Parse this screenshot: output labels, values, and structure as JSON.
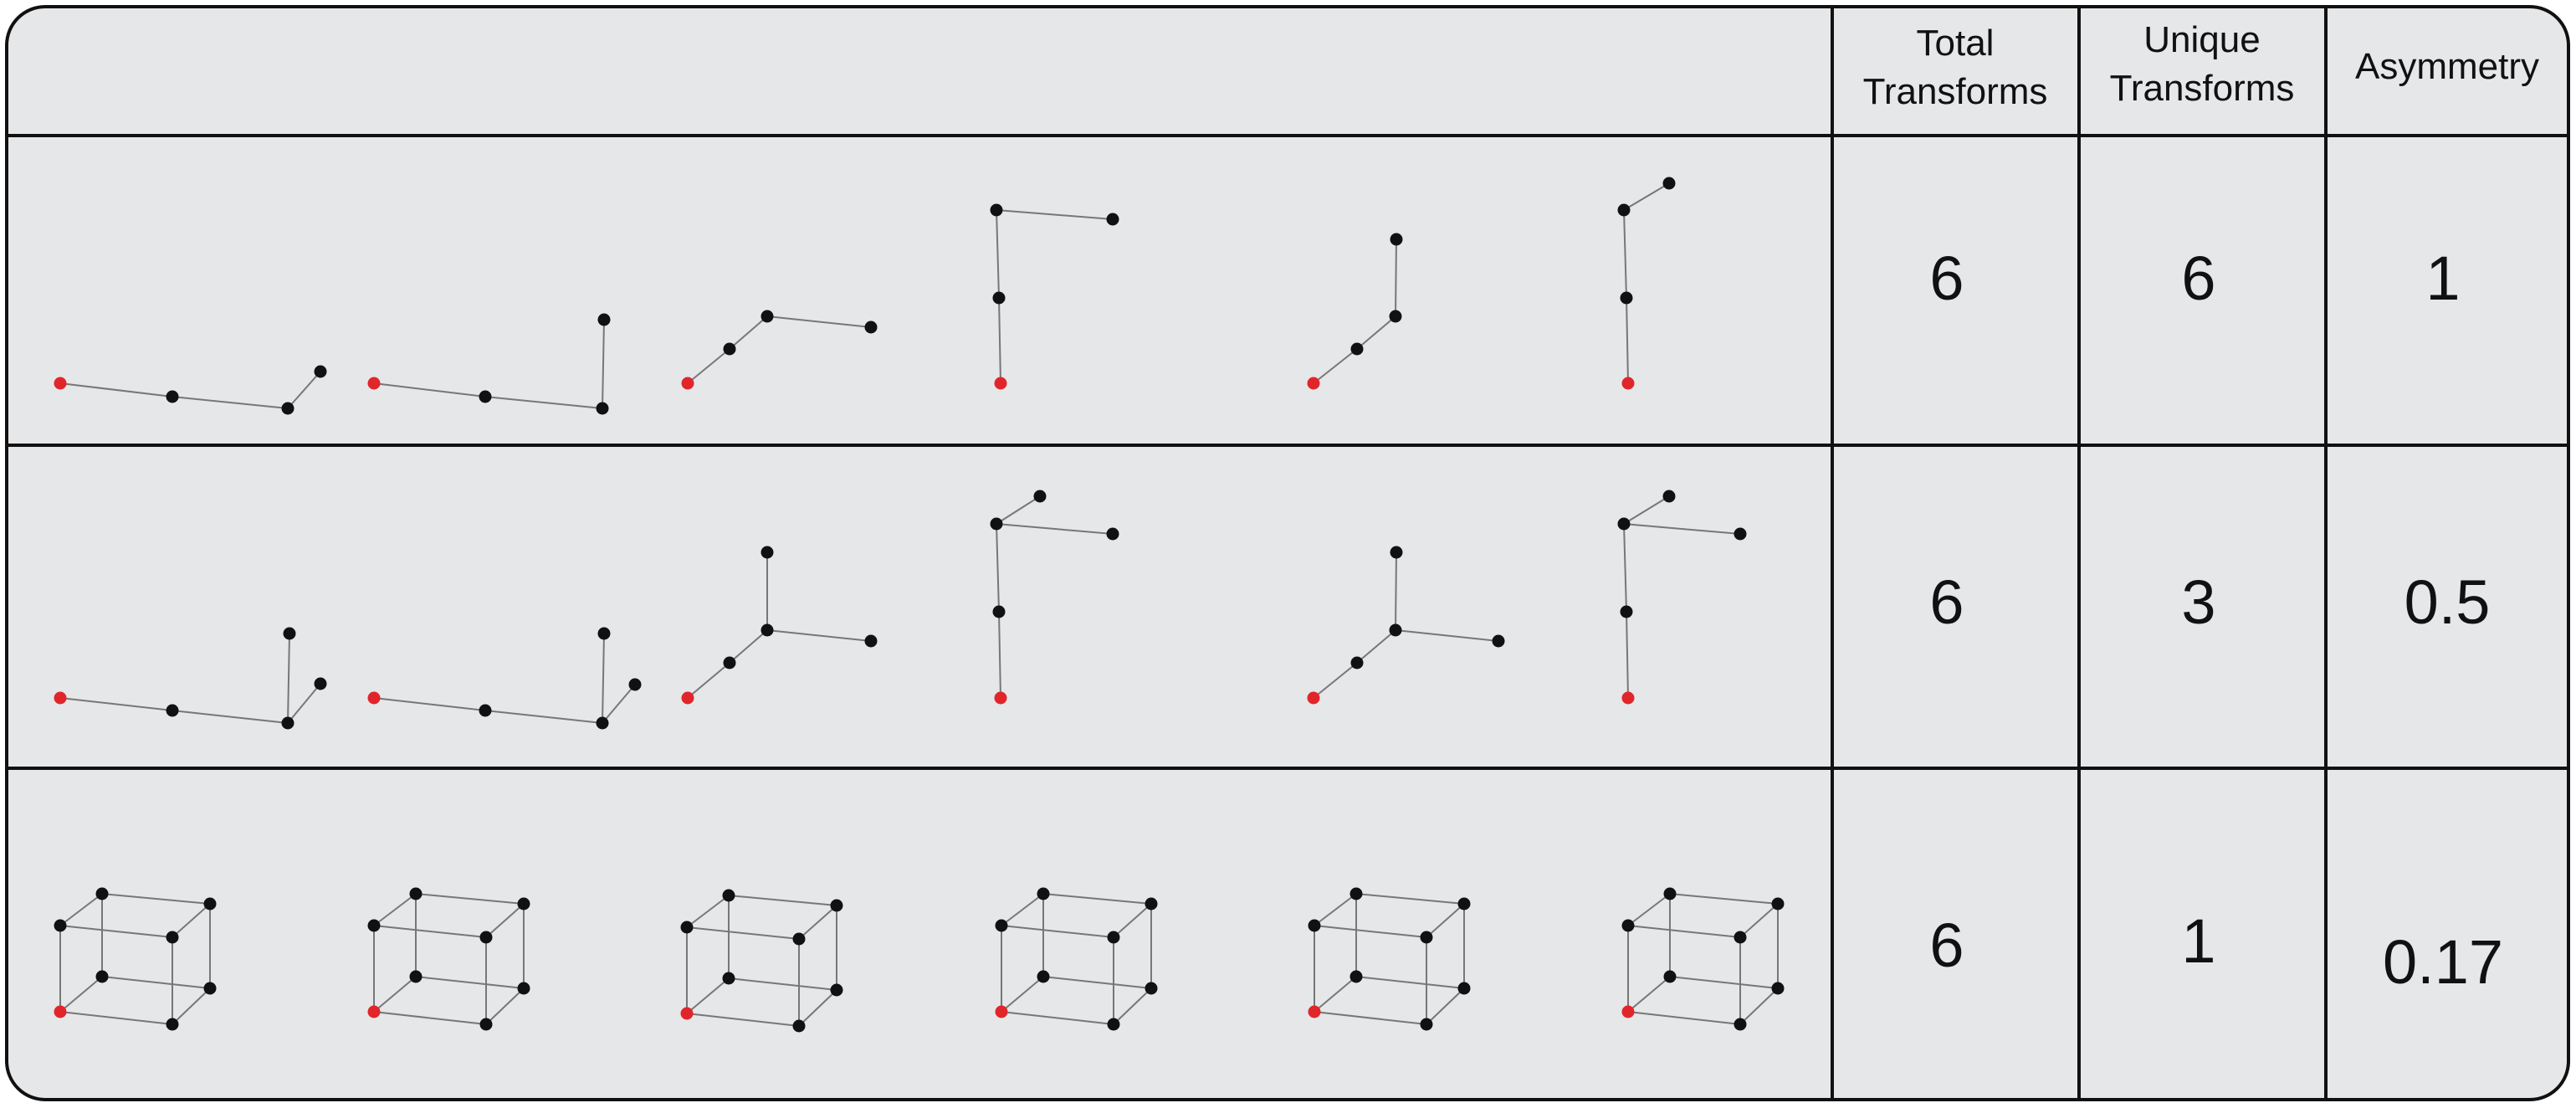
{
  "header": {
    "columns": [
      {
        "lines": [
          "Total",
          "Transforms"
        ]
      },
      {
        "lines": [
          "Unique",
          "Transforms"
        ]
      },
      {
        "lines": [
          "Asymmetry"
        ]
      }
    ]
  },
  "rows": [
    {
      "total": "6",
      "unique": "6",
      "asymmetry": "1"
    },
    {
      "total": "6",
      "unique": "3",
      "asymmetry": "0.5"
    },
    {
      "total": "6",
      "unique": "1",
      "asymmetry": "0.17"
    }
  ],
  "colors": {
    "background": "#e6e7e9",
    "border": "#111111",
    "node": "#111111",
    "origin_node": "#e0262b",
    "edge": "#777777"
  }
}
